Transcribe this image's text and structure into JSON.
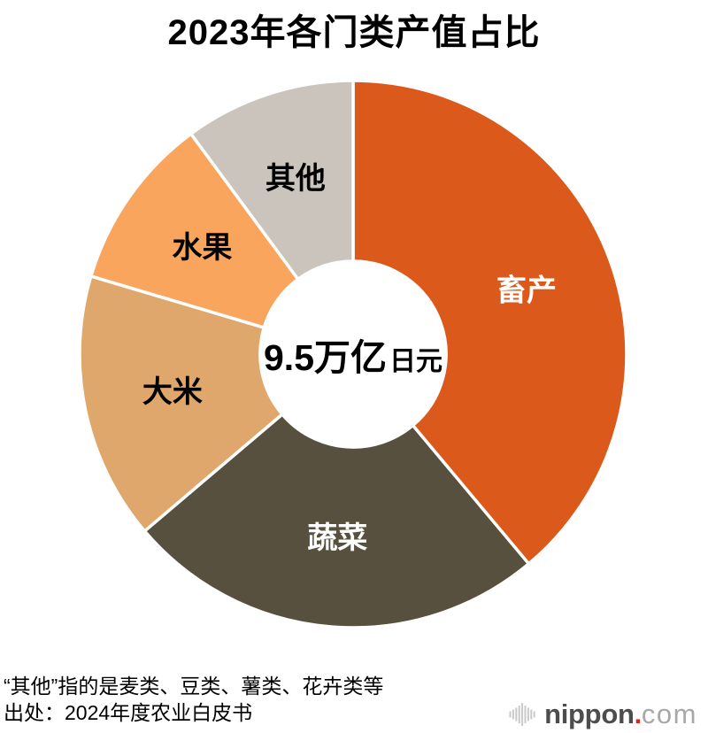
{
  "title": "2023年各门类产值占比",
  "center": {
    "value": "9.5万亿",
    "unit": "日元"
  },
  "footnote": "“其他”指的是麦类、豆类、薯类、花卉类等",
  "source": "出处：2024年度农业白皮书",
  "logo": {
    "icon": "soundwave-bars-icon",
    "name": "nippon",
    "dot": ".",
    "tld": "com",
    "name_color": "#4D4D4D",
    "dot_color": "#E0251B",
    "tld_color": "#A8A8A8",
    "bars_color": "#C9C9C9"
  },
  "chart_data": {
    "type": "pie",
    "subtype": "donut",
    "title": "2023年各门类产值占比",
    "total": "9.5万亿日元",
    "start_angle_deg": 0,
    "direction": "clockwise",
    "inner_radius_ratio": 0.34,
    "legend_position": "labels-on-slices",
    "segments": [
      {
        "label": "畜产",
        "percent": 38.9,
        "color": "#DB5A1B",
        "text_color": "#FFFFFF"
      },
      {
        "label": "蔬菜",
        "percent": 24.9,
        "color": "#57503E",
        "text_color": "#FFFFFF"
      },
      {
        "label": "大米",
        "percent": 15.8,
        "color": "#E0A76C",
        "text_color": "#000000"
      },
      {
        "label": "水果",
        "percent": 10.3,
        "color": "#F9A55E",
        "text_color": "#000000"
      },
      {
        "label": "其他",
        "percent": 10.1,
        "color": "#CBC4BC",
        "text_color": "#000000"
      }
    ]
  }
}
